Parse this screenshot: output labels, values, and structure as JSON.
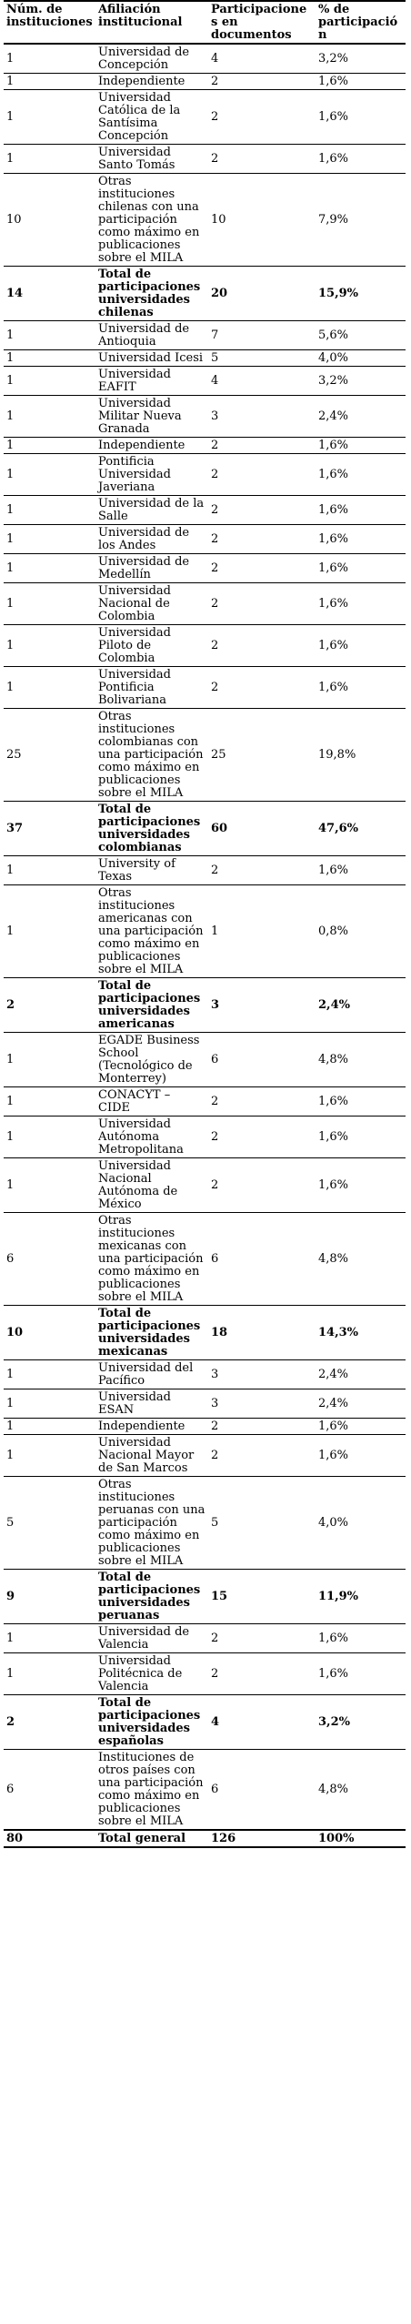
{
  "table": {
    "headers": [
      "Núm. de instituciones",
      "Afiliación institucional",
      "Participaciones en documentos",
      "% de participación"
    ],
    "rows": [
      {
        "n": "1",
        "inst": "Universidad de Concepción",
        "p": "4",
        "pct": "3,2%",
        "total": false
      },
      {
        "n": "1",
        "inst": "Independiente",
        "p": "2",
        "pct": "1,6%",
        "total": false
      },
      {
        "n": "1",
        "inst": "Universidad Católica de la Santísima Concepción",
        "p": "2",
        "pct": "1,6%",
        "total": false
      },
      {
        "n": "1",
        "inst": "Universidad Santo Tomás",
        "p": "2",
        "pct": "1,6%",
        "total": false
      },
      {
        "n": "10",
        "inst": "Otras instituciones chilenas con una participación como máximo en publicaciones sobre el MILA",
        "p": "10",
        "pct": "7,9%",
        "total": false
      },
      {
        "n": "14",
        "inst": "Total de participaciones universidades chilenas",
        "p": "20",
        "pct": "15,9%",
        "total": true
      },
      {
        "n": "1",
        "inst": "Universidad de Antioquia",
        "p": "7",
        "pct": "5,6%",
        "total": false
      },
      {
        "n": "1",
        "inst": "Universidad Icesi",
        "p": "5",
        "pct": "4,0%",
        "total": false
      },
      {
        "n": "1",
        "inst": "Universidad EAFIT",
        "p": "4",
        "pct": "3,2%",
        "total": false
      },
      {
        "n": "1",
        "inst": "Universidad Militar Nueva Granada",
        "p": "3",
        "pct": "2,4%",
        "total": false
      },
      {
        "n": "1",
        "inst": "Independiente",
        "p": "2",
        "pct": "1,6%",
        "total": false
      },
      {
        "n": "1",
        "inst": "Pontificia Universidad Javeriana",
        "p": "2",
        "pct": "1,6%",
        "total": false
      },
      {
        "n": "1",
        "inst": "Universidad de la Salle",
        "p": "2",
        "pct": "1,6%",
        "total": false
      },
      {
        "n": "1",
        "inst": "Universidad de los Andes",
        "p": "2",
        "pct": "1,6%",
        "total": false
      },
      {
        "n": "1",
        "inst": "Universidad de Medellín",
        "p": "2",
        "pct": "1,6%",
        "total": false
      },
      {
        "n": "1",
        "inst": "Universidad Nacional de Colombia",
        "p": "2",
        "pct": "1,6%",
        "total": false
      },
      {
        "n": "1",
        "inst": "Universidad Piloto de Colombia",
        "p": "2",
        "pct": "1,6%",
        "total": false
      },
      {
        "n": "1",
        "inst": "Universidad Pontificia Bolivariana",
        "p": "2",
        "pct": "1,6%",
        "total": false
      },
      {
        "n": "25",
        "inst": "Otras instituciones colombianas con una participación como máximo en publicaciones sobre el MILA",
        "p": "25",
        "pct": "19,8%",
        "total": false
      },
      {
        "n": "37",
        "inst": "Total de participaciones universidades colombianas",
        "p": "60",
        "pct": "47,6%",
        "total": true
      },
      {
        "n": "1",
        "inst": "University of Texas",
        "p": "2",
        "pct": "1,6%",
        "total": false
      },
      {
        "n": "1",
        "inst": "Otras instituciones americanas con una participación como máximo en publicaciones sobre el MILA",
        "p": "1",
        "pct": "0,8%",
        "total": false
      },
      {
        "n": "2",
        "inst": "Total de participaciones universidades americanas",
        "p": "3",
        "pct": "2,4%",
        "total": true
      },
      {
        "n": "1",
        "inst": "EGADE Business School (Tecnológico de Monterrey)",
        "p": "6",
        "pct": "4,8%",
        "total": false
      },
      {
        "n": "1",
        "inst": "CONACYT – CIDE",
        "p": "2",
        "pct": "1,6%",
        "total": false
      },
      {
        "n": "1",
        "inst": "Universidad Autónoma Metropolitana",
        "p": "2",
        "pct": "1,6%",
        "total": false
      },
      {
        "n": "1",
        "inst": "Universidad Nacional Autónoma de México",
        "p": "2",
        "pct": "1,6%",
        "total": false
      },
      {
        "n": "6",
        "inst": "Otras instituciones mexicanas con una participación como máximo en publicaciones sobre el MILA",
        "p": "6",
        "pct": "4,8%",
        "total": false
      },
      {
        "n": "10",
        "inst": "Total de participaciones universidades mexicanas",
        "p": "18",
        "pct": "14,3%",
        "total": true
      },
      {
        "n": "1",
        "inst": "Universidad del Pacífico",
        "p": "3",
        "pct": "2,4%",
        "total": false
      },
      {
        "n": "1",
        "inst": "Universidad ESAN",
        "p": "3",
        "pct": "2,4%",
        "total": false
      },
      {
        "n": "1",
        "inst": "Independiente",
        "p": "2",
        "pct": "1,6%",
        "total": false
      },
      {
        "n": "1",
        "inst": "Universidad Nacional Mayor de San Marcos",
        "p": "2",
        "pct": "1,6%",
        "total": false
      },
      {
        "n": "5",
        "inst": "Otras instituciones peruanas con una participación como máximo en publicaciones sobre el MILA",
        "p": "5",
        "pct": "4,0%",
        "total": false
      },
      {
        "n": "9",
        "inst": "Total de participaciones universidades peruanas",
        "p": "15",
        "pct": "11,9%",
        "total": true
      },
      {
        "n": "1",
        "inst": "Universidad de Valencia",
        "p": "2",
        "pct": "1,6%",
        "total": false
      },
      {
        "n": "1",
        "inst": "Universidad Politécnica de Valencia",
        "p": "2",
        "pct": "1,6%",
        "total": false
      },
      {
        "n": "2",
        "inst": "Total de participaciones universidades españolas",
        "p": "4",
        "pct": "3,2%",
        "total": true
      },
      {
        "n": "6",
        "inst": "Instituciones de otros países con una participación como máximo en publicaciones sobre el MILA",
        "p": "6",
        "pct": "4,8%",
        "total": false
      }
    ],
    "grand_total": {
      "n": "80",
      "inst": "Total general",
      "p": "126",
      "pct": "100%"
    }
  }
}
